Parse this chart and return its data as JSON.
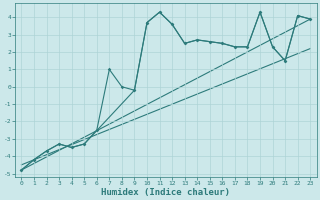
{
  "background_color": "#cce8ea",
  "grid_color": "#aed4d6",
  "line_color": "#2d7b7b",
  "xlabel": "Humidex (Indice chaleur)",
  "xlim": [
    -0.5,
    23.5
  ],
  "ylim": [
    -5.2,
    4.8
  ],
  "xticks": [
    0,
    1,
    2,
    3,
    4,
    5,
    6,
    7,
    8,
    9,
    10,
    11,
    12,
    13,
    14,
    15,
    16,
    17,
    18,
    19,
    20,
    21,
    22,
    23
  ],
  "yticks": [
    -5,
    -4,
    -3,
    -2,
    -1,
    0,
    1,
    2,
    3,
    4
  ],
  "curve1_x": [
    0,
    1,
    2,
    3,
    4,
    5,
    6,
    7,
    8,
    9,
    10,
    11,
    12,
    13,
    14,
    15,
    16,
    17,
    18,
    19,
    20,
    21,
    22,
    23
  ],
  "curve1_y": [
    -4.8,
    -4.2,
    -3.7,
    -3.3,
    -3.5,
    -3.3,
    -2.5,
    1.0,
    0.0,
    -0.2,
    3.7,
    4.3,
    3.6,
    2.5,
    2.7,
    2.6,
    2.5,
    2.3,
    2.3,
    4.3,
    2.3,
    1.5,
    4.1,
    3.9
  ],
  "curve2_x": [
    0,
    1,
    2,
    3,
    4,
    5,
    9,
    10,
    11,
    12,
    13,
    14,
    15,
    16,
    17,
    18,
    19,
    20,
    21,
    22,
    23
  ],
  "curve2_y": [
    -4.8,
    -4.2,
    -3.7,
    -3.3,
    -3.5,
    -3.3,
    -0.2,
    3.7,
    4.3,
    3.6,
    2.5,
    2.7,
    2.6,
    2.5,
    2.3,
    2.3,
    4.3,
    2.3,
    1.5,
    4.1,
    3.9
  ],
  "line1_x": [
    0,
    23
  ],
  "line1_y": [
    -4.8,
    3.9
  ],
  "line2_x": [
    0,
    23
  ],
  "line2_y": [
    -4.5,
    2.2
  ]
}
